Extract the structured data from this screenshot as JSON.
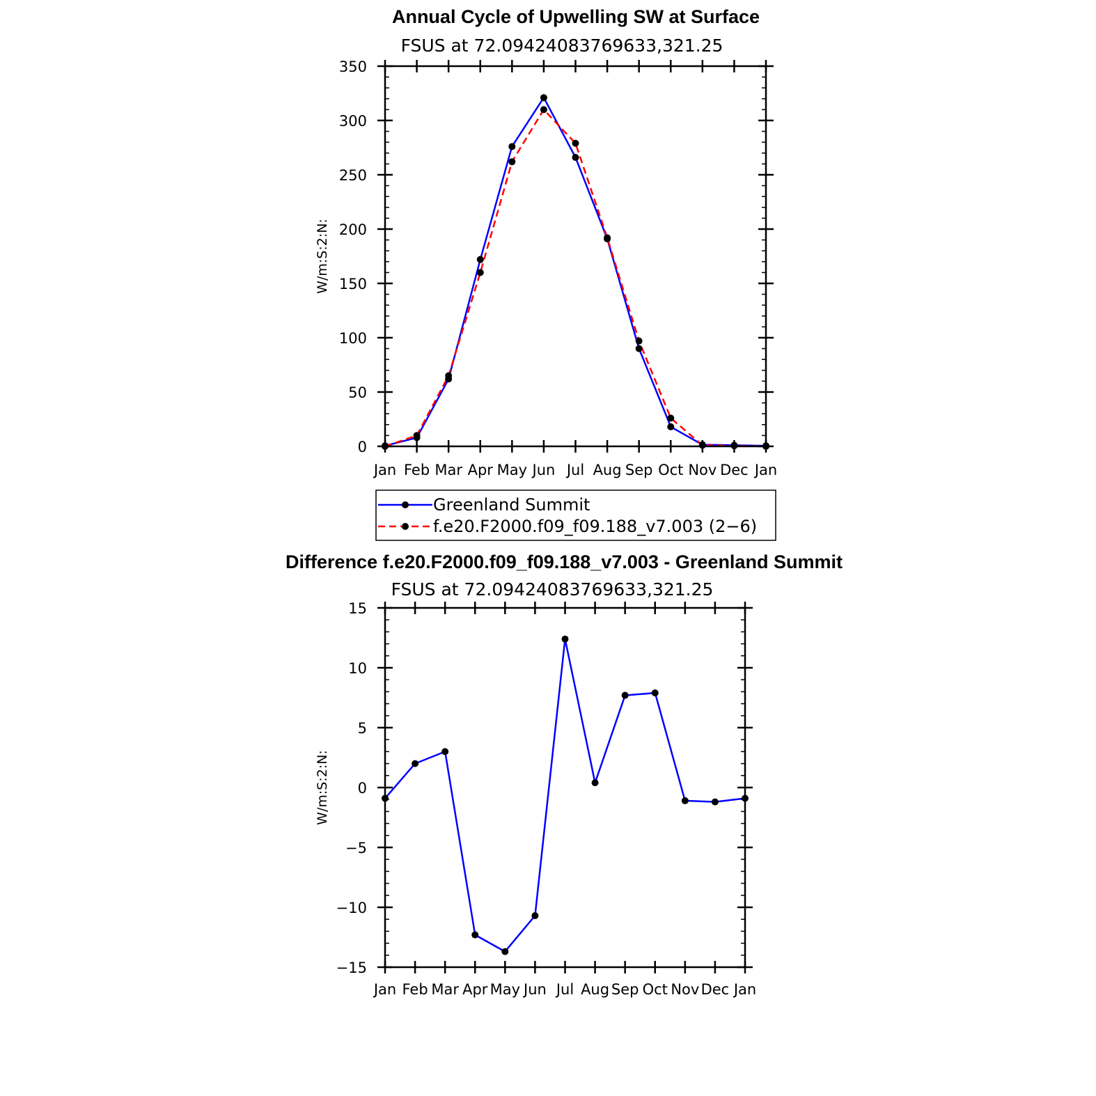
{
  "chart_data": [
    {
      "type": "line",
      "title": "Annual Cycle of Upwelling SW at Surface",
      "subtitle": "FSUS at 72.09424083769633,321.25",
      "ylabel": "W/m:S:2:N:",
      "xlabel": "",
      "categories": [
        "Jan",
        "Feb",
        "Mar",
        "Apr",
        "May",
        "Jun",
        "Jul",
        "Aug",
        "Sep",
        "Oct",
        "Nov",
        "Dec",
        "Jan"
      ],
      "ylim": [
        0,
        350
      ],
      "yticks": [
        0,
        50,
        100,
        150,
        200,
        250,
        300,
        350
      ],
      "ytick_labels": [
        "0",
        "50",
        "100",
        "150",
        "200",
        "250",
        "300",
        "350"
      ],
      "grid": false,
      "legend_position": "below",
      "series": [
        {
          "name": "Greenland Summit",
          "color": "#0000ff",
          "dash": "solid",
          "values": [
            0.5,
            8,
            62,
            172,
            276,
            321,
            266,
            191,
            90,
            18,
            1.5,
            1,
            0.5
          ]
        },
        {
          "name": "f.e20.F2000.f09_f09.188_v7.003 (2−6)",
          "color": "#ff0000",
          "dash": "dashed",
          "values": [
            0,
            10,
            65,
            160,
            262,
            310,
            279,
            192,
            97,
            26,
            1,
            0.5,
            0
          ]
        }
      ]
    },
    {
      "type": "line",
      "title": "Difference f.e20.F2000.f09_f09.188_v7.003 - Greenland Summit",
      "subtitle": "FSUS at 72.09424083769633,321.25",
      "ylabel": "W/m:S:2:N:",
      "xlabel": "",
      "categories": [
        "Jan",
        "Feb",
        "Mar",
        "Apr",
        "May",
        "Jun",
        "Jul",
        "Aug",
        "Sep",
        "Oct",
        "Nov",
        "Dec",
        "Jan"
      ],
      "ylim": [
        -15,
        15
      ],
      "yticks": [
        -15,
        -10,
        -5,
        0,
        5,
        10,
        15
      ],
      "ytick_labels": [
        "−15",
        "−10",
        "−5",
        "0",
        "5",
        "10",
        "15"
      ],
      "grid": false,
      "series": [
        {
          "color": "#0000ff",
          "dash": "solid",
          "values": [
            -0.9,
            2.0,
            3.0,
            -12.3,
            -13.7,
            -10.7,
            12.4,
            0.4,
            7.7,
            7.9,
            -1.1,
            -1.2,
            -0.9
          ]
        }
      ]
    }
  ]
}
